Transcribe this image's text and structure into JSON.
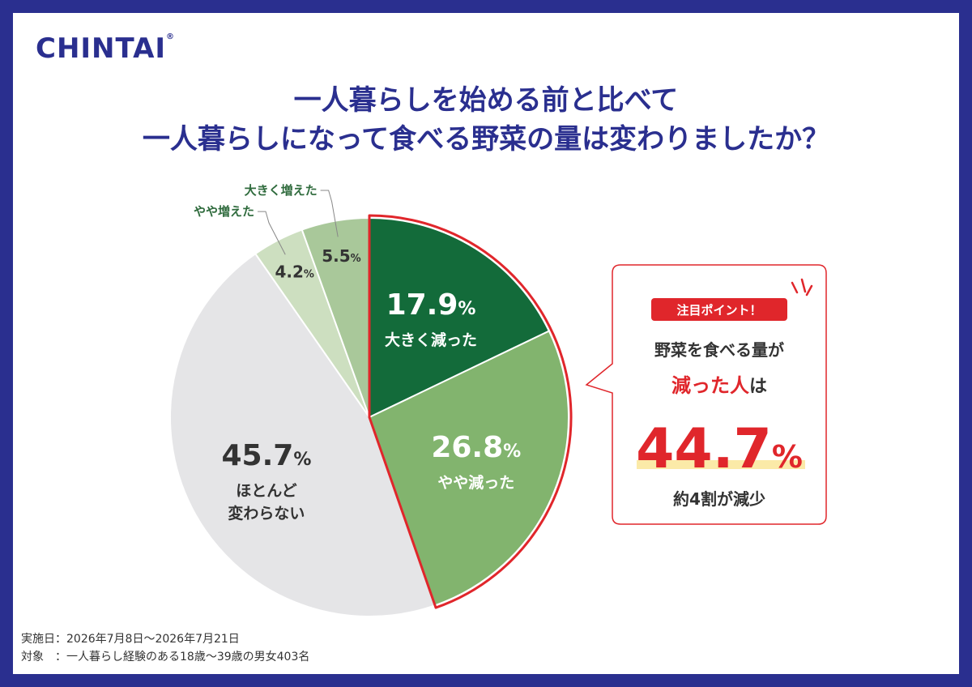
{
  "brand": {
    "logo_text": "CHINTAI",
    "logo_mark": "®",
    "color": "#2a2f8f"
  },
  "title": {
    "line1": "一人暮らしを始める前と比べて",
    "line2": "一人暮らしになって食べる野菜の量は変わりましたか？"
  },
  "chart_data": {
    "type": "pie",
    "start": "12 o'clock, clockwise",
    "slices": [
      {
        "label": "大きく減った",
        "value": 17.9,
        "value_text": "17.9",
        "color": "#136b3a",
        "text_color": "#ffffff",
        "highlight": true
      },
      {
        "label": "やや減った",
        "value": 26.8,
        "value_text": "26.8",
        "color": "#82b46e",
        "text_color": "#ffffff",
        "highlight": true
      },
      {
        "label": "ほとんど\n変わらない",
        "value": 45.7,
        "value_text": "45.7",
        "color": "#e5e5e7",
        "text_color": "#333333",
        "highlight": false
      },
      {
        "label": "やや増えた",
        "value": 4.2,
        "value_text": "4.2",
        "color": "#cddfc0",
        "text_color": "#333333",
        "highlight": false,
        "outside_label": true
      },
      {
        "label": "大きく増えた",
        "value": 5.5,
        "value_text": "5.5",
        "color": "#a9c89a",
        "text_color": "#333333",
        "highlight": false,
        "outside_label": true
      }
    ],
    "unit": "%",
    "highlight_color": "#e0262b"
  },
  "callout": {
    "badge": "注目ポイント！",
    "line1": "野菜を食べる量が",
    "line2_emph": "減った人",
    "line2_rest": "は",
    "big_value": "44.7",
    "big_unit": "%",
    "sub": "約4割が減少",
    "accent_color": "#e0262b",
    "underline_color": "#fbeaa8"
  },
  "footer": {
    "line1": "実施日：2026年7月8日～2026年7月21日",
    "line2": "対象　：一人暮らし経験のある18歳～39歳の男女403名"
  }
}
